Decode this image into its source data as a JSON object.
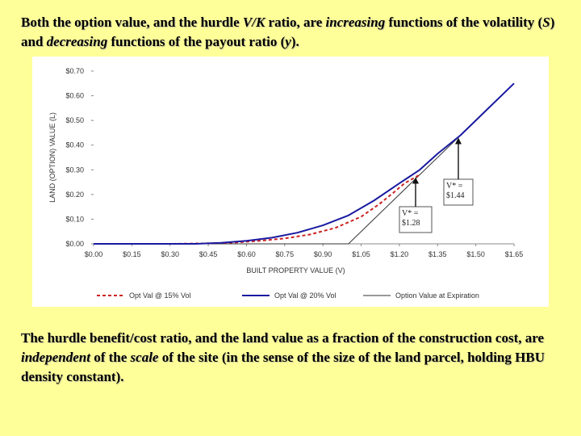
{
  "text": {
    "top_1": "Both the option value, and the hurdle ",
    "top_2": "V/K",
    "top_3": " ratio, are ",
    "top_4": "increasing",
    "top_5": " functions of the volatility (",
    "top_6": "S",
    "top_7": ") and ",
    "top_8": "decreasing",
    "top_9": " functions of the payout ratio (",
    "top_10": "y",
    "top_11": ").",
    "bottom_1": "The hurdle benefit/cost ratio, and the land value as a fraction of the construction cost, are ",
    "bottom_2": "independent",
    "bottom_3": " of the ",
    "bottom_4": "scale",
    "bottom_5": " of the site (in the sense of the size of the land parcel, holding HBU density constant)."
  },
  "chart_data": {
    "type": "line",
    "xlabel": "BUILT PROPERTY VALUE (V)",
    "ylabel": "LAND (OPTION) VALUE (L)",
    "xlim": [
      0.0,
      1.65
    ],
    "ylim": [
      0.0,
      0.7
    ],
    "x_ticks": [
      0.0,
      0.15,
      0.3,
      0.45,
      0.6,
      0.75,
      0.9,
      1.05,
      1.2,
      1.35,
      1.5,
      1.65
    ],
    "x_tick_labels": [
      "$0.00",
      "$0.15",
      "$0.30",
      "$0.45",
      "$0.60",
      "$0.75",
      "$0.90",
      "$1.05",
      "$1.20",
      "$1.35",
      "$1.50",
      "$1.65"
    ],
    "y_ticks": [
      0.0,
      0.1,
      0.2,
      0.3,
      0.4,
      0.5,
      0.6,
      0.7
    ],
    "y_tick_labels": [
      "$0.00",
      "$0.10",
      "$0.20",
      "$0.30",
      "$0.40",
      "$0.50",
      "$0.60",
      "$0.70"
    ],
    "legend_position": "bottom",
    "series": [
      {
        "name": "Opt Val @ 15% Vol",
        "color": "#cc2222",
        "style": "dashed",
        "x": [
          0.0,
          0.3,
          0.45,
          0.55,
          0.65,
          0.75,
          0.85,
          0.95,
          1.05,
          1.12,
          1.18,
          1.22,
          1.28
        ],
        "y": [
          0.0,
          0.0,
          0.002,
          0.005,
          0.012,
          0.022,
          0.038,
          0.065,
          0.11,
          0.16,
          0.21,
          0.245,
          0.28
        ]
      },
      {
        "name": "Opt Val @ 20% Vol",
        "color": "#1a1aa0",
        "style": "solid",
        "x": [
          0.0,
          0.4,
          0.5,
          0.6,
          0.7,
          0.8,
          0.9,
          1.0,
          1.1,
          1.2,
          1.28,
          1.35,
          1.44,
          1.55,
          1.65
        ],
        "y": [
          0.0,
          0.0,
          0.004,
          0.012,
          0.025,
          0.045,
          0.075,
          0.115,
          0.175,
          0.245,
          0.3,
          0.365,
          0.44,
          0.55,
          0.65
        ]
      },
      {
        "name": "Option Value at Expiration",
        "color": "#333333",
        "style": "solid-thin",
        "x": [
          0.0,
          1.0,
          1.65
        ],
        "y": [
          0.0,
          0.0,
          0.65
        ]
      }
    ],
    "annotations": [
      {
        "lines": [
          "V* =",
          "$1.44"
        ],
        "arrow_x": 1.44,
        "arrow_y": 0.43
      },
      {
        "lines": [
          "V* =",
          "$1.28"
        ],
        "arrow_x": 1.28,
        "arrow_y": 0.27
      }
    ]
  }
}
